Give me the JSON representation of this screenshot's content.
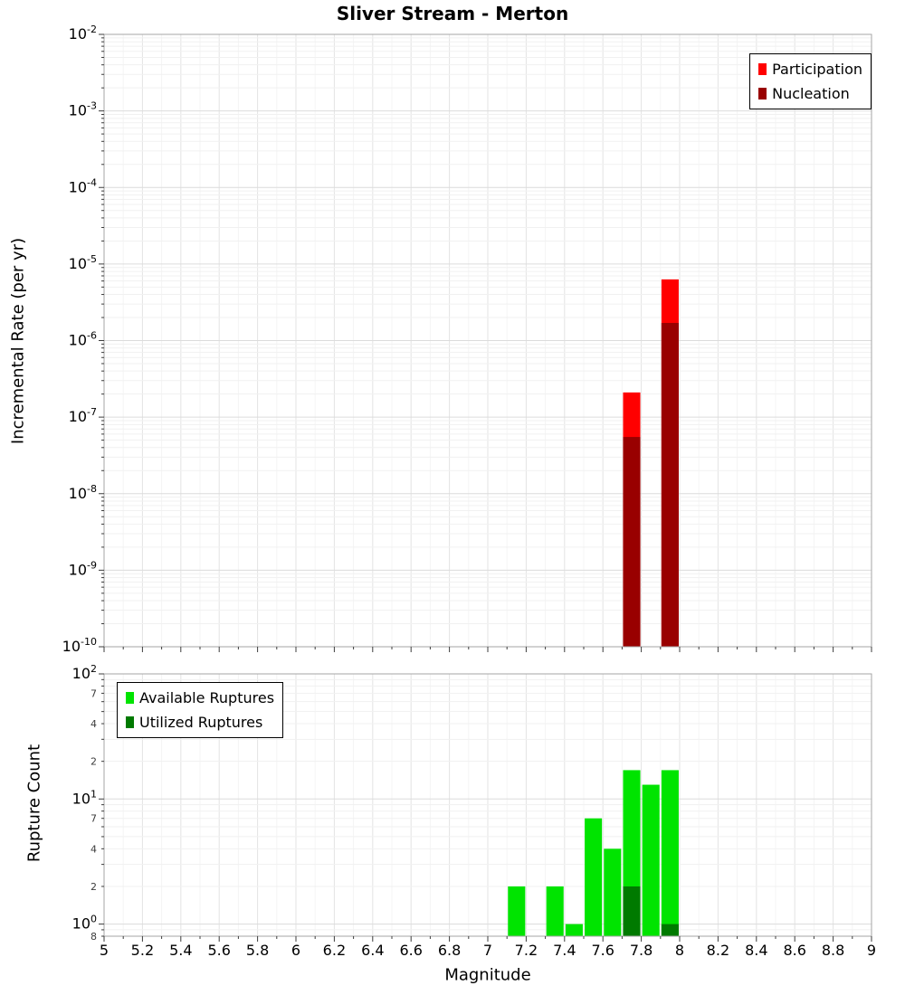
{
  "title": "Sliver Stream - Merton",
  "xlabel": "Magnitude",
  "x_tick_labels": [
    "5",
    "5.2",
    "5.4",
    "5.6",
    "5.8",
    "6",
    "6.2",
    "6.4",
    "6.6",
    "6.8",
    "7",
    "7.2",
    "7.4",
    "7.6",
    "7.8",
    "8",
    "8.2",
    "8.4",
    "8.6",
    "8.8",
    "9"
  ],
  "chart_data": [
    {
      "type": "bar",
      "title": "Sliver Stream - Merton",
      "xlabel": "",
      "ylabel": "Incremental Rate (per yr)",
      "x_range": [
        5,
        9
      ],
      "y_scale": "log",
      "y_range": [
        1e-10,
        0.01
      ],
      "y_tick_exponents": [
        -2,
        -3,
        -4,
        -5,
        -6,
        -7,
        -8,
        -9,
        -10
      ],
      "y_minor_tick_labels": [],
      "grid": true,
      "legend_position": "top-right",
      "bin_width": 0.1,
      "series": [
        {
          "name": "Participation",
          "color": "#ff0000",
          "x": [
            7.75,
            7.95
          ],
          "values": [
            2.1e-07,
            6.3e-06
          ]
        },
        {
          "name": "Nucleation",
          "color": "#990000",
          "x": [
            7.75,
            7.95
          ],
          "values": [
            5.5e-08,
            1.7e-06
          ]
        }
      ]
    },
    {
      "type": "bar",
      "title": "",
      "xlabel": "Magnitude",
      "ylabel": "Rupture Count",
      "x_range": [
        5,
        9
      ],
      "y_scale": "log",
      "y_range": [
        0.8,
        100
      ],
      "y_tick_exponents": [
        2,
        1,
        0
      ],
      "y_minor_tick_labels": [
        {
          "value": 70,
          "label": "7"
        },
        {
          "value": 40,
          "label": "4"
        },
        {
          "value": 20,
          "label": "2"
        },
        {
          "value": 7,
          "label": "7"
        },
        {
          "value": 4,
          "label": "4"
        },
        {
          "value": 2,
          "label": "2"
        },
        {
          "value": 0.8,
          "label": "8"
        }
      ],
      "grid": true,
      "legend_position": "top-left",
      "bin_width": 0.1,
      "series": [
        {
          "name": "Available Ruptures",
          "color": "#00e400",
          "x": [
            7.15,
            7.35,
            7.45,
            7.55,
            7.65,
            7.75,
            7.85,
            7.95
          ],
          "values": [
            2,
            2,
            1,
            7,
            4,
            17,
            13,
            17
          ]
        },
        {
          "name": "Utilized Ruptures",
          "color": "#007a00",
          "x": [
            7.75,
            7.95
          ],
          "values": [
            2,
            1
          ]
        }
      ]
    }
  ]
}
